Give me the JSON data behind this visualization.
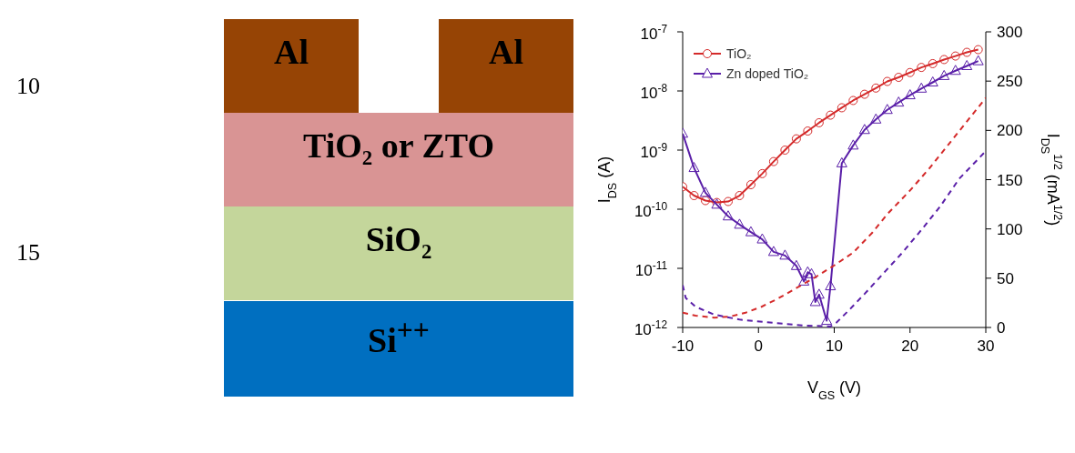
{
  "chart_data": [
    {
      "type": "other",
      "annotations": [
        "10",
        "15",
        "Al",
        "Al",
        "TiO₂ or ZTO",
        "SiO₂",
        "Si$^{++}$"
      ]
    },
    {
      "type": "line",
      "xlabel": "V$_{GS}$ (V)",
      "ylabel": "I$_{DS}$ (A)",
      "y2label": "I$_{DS}$$^{1/2}$ (mA$^{1/2}$)",
      "xlim": [
        -10,
        30
      ],
      "xticks": [
        -10,
        0,
        10,
        20,
        30
      ],
      "ylim": [
        1e-12,
        1e-07
      ],
      "yticks": [
        {
          "value": 1e-12,
          "label": "10$^{-12}$"
        },
        {
          "value": 1e-11,
          "label": "10$^{-11}$"
        },
        {
          "value": 1e-10,
          "label": "10$^{-10}$"
        },
        {
          "value": 1e-09,
          "label": "10$^{-9}$"
        },
        {
          "value": 1e-08,
          "label": "10$^{-8}$"
        },
        {
          "value": 1e-07,
          "label": "10$^{-7}$"
        }
      ],
      "y2lim": [
        0,
        300
      ],
      "y2ticks": [
        0,
        50,
        100,
        150,
        200,
        250,
        300
      ],
      "log": "y",
      "legend": "top left",
      "series": [
        {
          "name": "TiO₂",
          "color": "#d42a2a",
          "marker": "circle",
          "line_style": "solid",
          "x": [
            -10,
            -8.5,
            -7,
            -5.5,
            -4,
            -2.5,
            -1,
            0.5,
            2,
            3.5,
            5,
            6.5,
            8,
            9.5,
            11,
            12.5,
            14,
            15.5,
            17,
            18.5,
            20,
            21.5,
            23,
            24.5,
            26,
            27.5,
            29
          ],
          "values": [
            2.4e-10,
            1.7e-10,
            1.4e-10,
            1.3e-10,
            1.35e-10,
            1.7e-10,
            2.6e-10,
            4e-10,
            6.4e-10,
            1e-09,
            1.55e-09,
            2.1e-09,
            2.9e-09,
            3.9e-09,
            5.2e-09,
            6.9e-09,
            8.8e-09,
            1.12e-08,
            1.45e-08,
            1.7e-08,
            2.05e-08,
            2.5e-08,
            2.9e-08,
            3.4e-08,
            3.9e-08,
            4.5e-08,
            5e-08
          ]
        },
        {
          "name": "Zn doped TiO₂",
          "color": "#5a1fa8",
          "marker": "triangle",
          "line_style": "solid",
          "x": [
            -10,
            -8.5,
            -7,
            -5.5,
            -4,
            -2.5,
            -1,
            0.5,
            2,
            3.5,
            5,
            6,
            6.5,
            7,
            7.5,
            8,
            9,
            9.5,
            11,
            12.5,
            14,
            15.5,
            17,
            18.5,
            20,
            21.5,
            23,
            24.5,
            26,
            27.5,
            29
          ],
          "values": [
            1.9e-09,
            5e-10,
            1.9e-10,
            1.2e-10,
            7.6e-11,
            5.5e-11,
            4.1e-11,
            3.1e-11,
            1.9e-11,
            1.65e-11,
            1.1e-11,
            6e-12,
            8.6e-12,
            8e-12,
            2.7e-12,
            3.6e-12,
            1.3e-12,
            5e-12,
            6e-10,
            1.2e-09,
            2.2e-09,
            3.3e-09,
            4.8e-09,
            6.4e-09,
            8.5e-09,
            1.1e-08,
            1.4e-08,
            1.8e-08,
            2.2e-08,
            2.65e-08,
            3.2e-08
          ]
        },
        {
          "color": "#d42a2a",
          "axis": "y2",
          "marker": "none",
          "line_style": "dashed",
          "x": [
            -10,
            -8.3,
            -5.8,
            -3.8,
            -1.7,
            0.4,
            2.5,
            5,
            7.5,
            10,
            12.5,
            15,
            17,
            20,
            22.5,
            25,
            27.5,
            30
          ],
          "values": [
            15,
            12,
            10,
            11,
            15,
            21,
            29,
            40,
            51,
            63,
            76,
            96,
            115,
            139,
            161,
            185,
            209,
            233
          ]
        },
        {
          "color": "#5a1fa8",
          "axis": "y2",
          "marker": "none",
          "line_style": "dashed",
          "x": [
            -10,
            -9.6,
            -8.3,
            -5.8,
            -2.5,
            1.5,
            6,
            9.5,
            10.3,
            12,
            14,
            16.5,
            19,
            21.5,
            24,
            26.5,
            30
          ],
          "values": [
            43,
            30,
            21,
            13,
            8,
            5,
            2,
            1,
            5,
            18,
            34,
            55,
            76,
            99,
            123,
            151,
            179
          ]
        }
      ]
    }
  ]
}
